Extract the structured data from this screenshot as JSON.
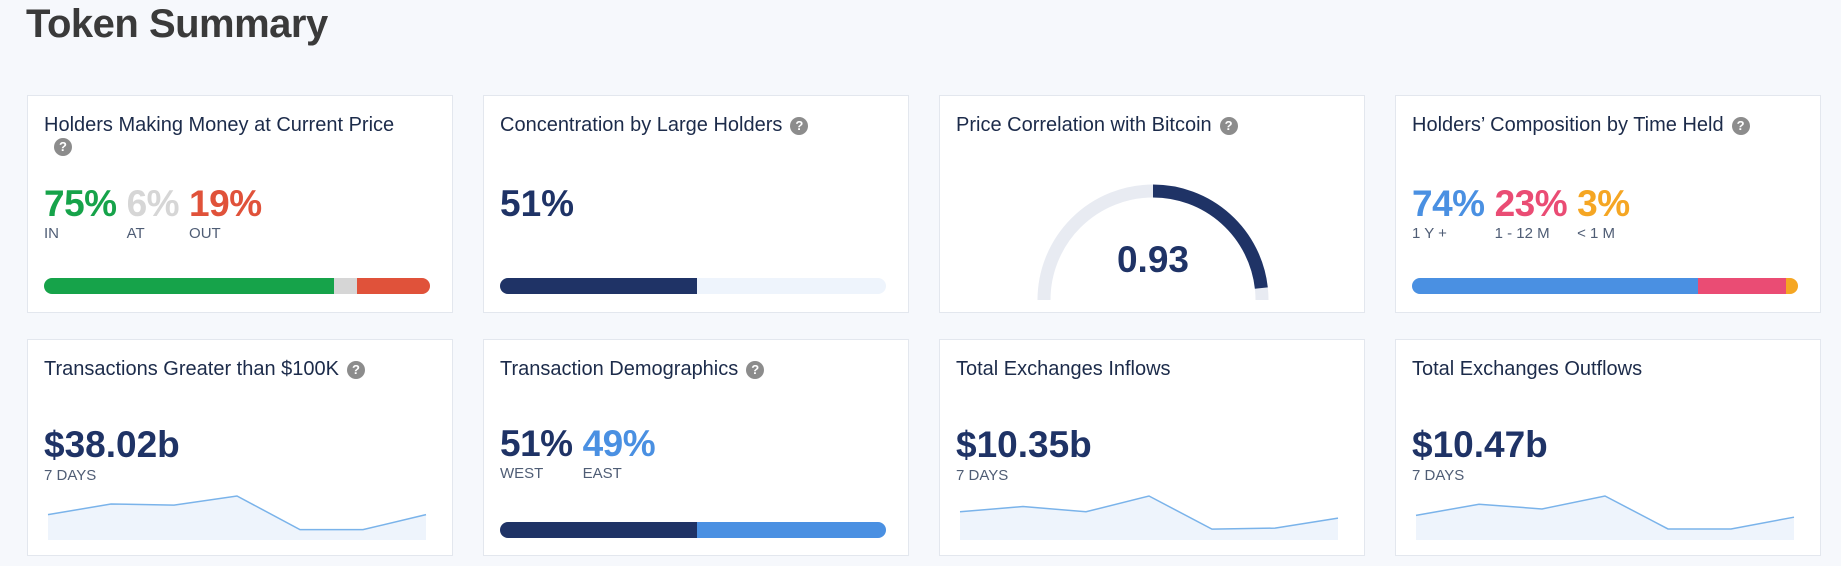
{
  "page": {
    "title": "Token Summary"
  },
  "colors": {
    "navy": "#1f3366",
    "green": "#16a34a",
    "gray": "#d6d6d6",
    "red": "#e0523a",
    "blue": "#4a90e2",
    "pink": "#ea4c74",
    "orange": "#f5a623",
    "light": "#eef4fc"
  },
  "cards": {
    "holders_money": {
      "title": "Holders Making Money at Current Price",
      "help_icon": "question-circle-icon",
      "stats": [
        {
          "value": "75%",
          "label": "IN",
          "fraction": 0.75,
          "color": "#16a34a"
        },
        {
          "value": "6%",
          "label": "AT",
          "fraction": 0.06,
          "color": "#d6d6d6"
        },
        {
          "value": "19%",
          "label": "OUT",
          "fraction": 0.19,
          "color": "#e0523a"
        }
      ]
    },
    "concentration": {
      "title": "Concentration by Large Holders",
      "help_icon": "question-circle-icon",
      "value": "51%",
      "fraction": 0.51
    },
    "correlation": {
      "title": "Price Correlation with Bitcoin",
      "help_icon": "question-circle-icon",
      "value": "0.93",
      "level": 0.93
    },
    "composition": {
      "title": "Holders’ Composition by Time Held",
      "help_icon": "question-circle-icon",
      "stats": [
        {
          "value": "74%",
          "label": "1 Y +",
          "fraction": 0.74,
          "color": "#4a90e2"
        },
        {
          "value": "23%",
          "label": "1 - 12 M",
          "fraction": 0.23,
          "color": "#ea4c74"
        },
        {
          "value": "3%",
          "label": "< 1 M",
          "fraction": 0.03,
          "color": "#f5a623"
        }
      ]
    },
    "large_tx": {
      "title": "Transactions Greater than $100K",
      "help_icon": "question-circle-icon",
      "value": "$38.02b",
      "period": "7 DAYS",
      "trend": [
        4,
        6,
        5.8,
        7.5,
        1.2,
        1.2,
        4
      ]
    },
    "demographics": {
      "title": "Transaction Demographics",
      "help_icon": "question-circle-icon",
      "stats": [
        {
          "value": "51%",
          "label": "WEST",
          "fraction": 0.51,
          "color": "#1f3366"
        },
        {
          "value": "49%",
          "label": "EAST",
          "fraction": 0.49,
          "color": "#4a90e2"
        }
      ]
    },
    "inflows": {
      "title": "Total Exchanges Inflows",
      "value": "$10.35b",
      "period": "7 DAYS",
      "trend": [
        4.6,
        5.6,
        4.6,
        7.6,
        1.3,
        1.5,
        3.4
      ]
    },
    "outflows": {
      "title": "Total Exchanges Outflows",
      "value": "$10.47b",
      "period": "7 DAYS",
      "trend": [
        3.5,
        5.4,
        4.6,
        6.8,
        1.2,
        1.2,
        3.2
      ]
    }
  }
}
